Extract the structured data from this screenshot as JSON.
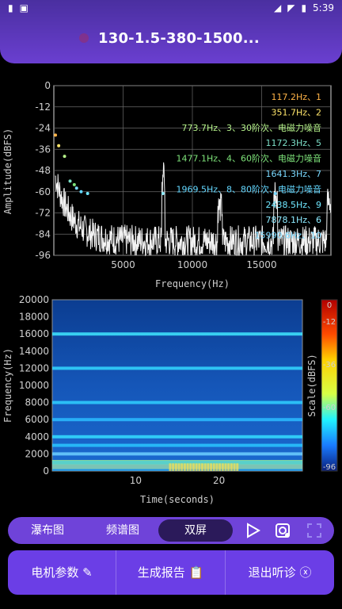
{
  "status": {
    "time": "5:39"
  },
  "header": {
    "title": "130-1.5-380-1500..."
  },
  "spectrum": {
    "chart_data": {
      "type": "line",
      "xlabel": "Frequency(Hz)",
      "ylabel": "Amplitude(dBFS)",
      "xlim": [
        0,
        20000
      ],
      "ylim": [
        -96,
        0
      ],
      "x_ticks": [
        5000,
        10000,
        15000
      ],
      "y_ticks": [
        0,
        -12,
        -24,
        -36,
        -48,
        -60,
        -72,
        -84,
        -96
      ],
      "grid": true,
      "annotations": [
        {
          "text": "117.2Hz、1",
          "color": "#ffb347"
        },
        {
          "text": "351.7Hz、2",
          "color": "#ffe66b"
        },
        {
          "text": "773.7Hz、3、30阶次、电磁力噪音",
          "color": "#b5f28a"
        },
        {
          "text": "1172.3Hz、5",
          "color": "#7de0c8"
        },
        {
          "text": "1477.1Hz、4、60阶次、电磁力噪音",
          "color": "#7ee37a"
        },
        {
          "text": "1641.3Hz、7",
          "color": "#7ad9ff"
        },
        {
          "text": "1969.5Hz、8、80阶次、电磁力噪音",
          "color": "#63d7ff"
        },
        {
          "text": "2438.5Hz、9",
          "color": "#6fe7ff"
        },
        {
          "text": "7878.1Hz、6",
          "color": "#8deaff"
        },
        {
          "text": "15990.6Hz、10",
          "color": "#7ad9ff"
        }
      ]
    }
  },
  "spectrogram": {
    "chart_data": {
      "type": "heatmap",
      "xlabel": "Time(seconds)",
      "ylabel": "Frequency(Hz)",
      "xlim": [
        0,
        30
      ],
      "ylim": [
        0,
        20000
      ],
      "x_ticks": [
        10,
        20
      ],
      "y_ticks": [
        20000,
        18000,
        16000,
        14000,
        12000,
        10000,
        8000,
        6000,
        4000,
        2000,
        0
      ],
      "colorbar": {
        "label": "Scale(dBFS)",
        "ticks": [
          0,
          -12,
          -36,
          -60,
          -96
        ],
        "range": [
          -96,
          0
        ]
      }
    }
  },
  "tabs": {
    "waterfall": "瀑布图",
    "spectrum": "频谱图",
    "dual": "双屏"
  },
  "actions": {
    "motor": "电机参数",
    "report": "生成报告",
    "exit": "退出听诊"
  }
}
